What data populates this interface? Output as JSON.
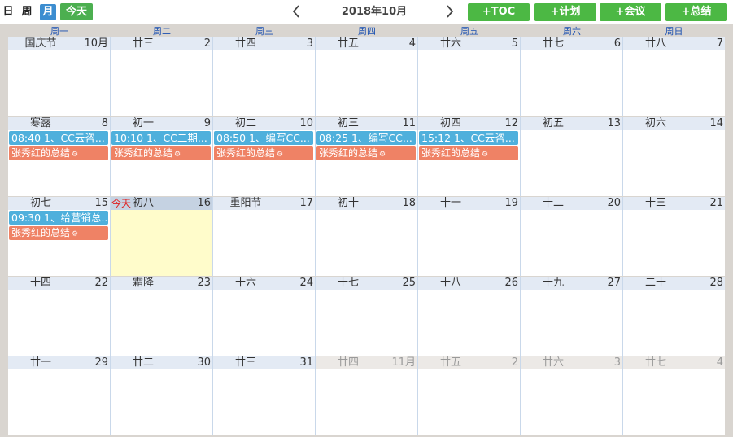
{
  "toolbar": {
    "view_day": "日",
    "view_week": "周",
    "view_month": "月",
    "today": "今天",
    "prev_icon": "chevron-left",
    "next_icon": "chevron-right",
    "title": "2018年10月",
    "btn_toc": "+TOC",
    "btn_plan": "+计划",
    "btn_meeting": "+会议",
    "btn_summary": "+总结"
  },
  "colors": {
    "accent_green": "#4cb844",
    "month_active": "#3c8dd0",
    "plan_event": "#4fb0dc",
    "summary_event": "#ef8265",
    "today_bg": "#fffccb",
    "today_label": "#e02020"
  },
  "weekdays": [
    "周一",
    "周二",
    "周三",
    "周四",
    "周五",
    "周六",
    "周日"
  ],
  "today_label": "今天",
  "weeks": [
    [
      {
        "lunar": "国庆节",
        "num": "10月"
      },
      {
        "lunar": "廿三",
        "num": "2"
      },
      {
        "lunar": "廿四",
        "num": "3"
      },
      {
        "lunar": "廿五",
        "num": "4"
      },
      {
        "lunar": "廿六",
        "num": "5"
      },
      {
        "lunar": "廿七",
        "num": "6"
      },
      {
        "lunar": "廿八",
        "num": "7"
      }
    ],
    [
      {
        "lunar": "寒露",
        "num": "8",
        "plan": "08:40 1、CC云咨...",
        "summary": "张秀红的总结"
      },
      {
        "lunar": "初一",
        "num": "9",
        "plan": "10:10 1、CC二期...",
        "summary": "张秀红的总结"
      },
      {
        "lunar": "初二",
        "num": "10",
        "plan": "08:50 1、编写CC...",
        "summary": "张秀红的总结"
      },
      {
        "lunar": "初三",
        "num": "11",
        "plan": "08:25 1、编写CC...",
        "summary": "张秀红的总结"
      },
      {
        "lunar": "初四",
        "num": "12",
        "plan": "15:12 1、CC云咨...",
        "summary": "张秀红的总结"
      },
      {
        "lunar": "初五",
        "num": "13"
      },
      {
        "lunar": "初六",
        "num": "14"
      }
    ],
    [
      {
        "lunar": "初七",
        "num": "15",
        "plan": "09:30 1、给营销总...",
        "summary": "张秀红的总结"
      },
      {
        "lunar": "初八",
        "num": "16",
        "today": true
      },
      {
        "lunar": "重阳节",
        "num": "17"
      },
      {
        "lunar": "初十",
        "num": "18"
      },
      {
        "lunar": "十一",
        "num": "19"
      },
      {
        "lunar": "十二",
        "num": "20"
      },
      {
        "lunar": "十三",
        "num": "21"
      }
    ],
    [
      {
        "lunar": "十四",
        "num": "22"
      },
      {
        "lunar": "霜降",
        "num": "23"
      },
      {
        "lunar": "十六",
        "num": "24"
      },
      {
        "lunar": "十七",
        "num": "25"
      },
      {
        "lunar": "十八",
        "num": "26"
      },
      {
        "lunar": "十九",
        "num": "27"
      },
      {
        "lunar": "二十",
        "num": "28"
      }
    ],
    [
      {
        "lunar": "廿一",
        "num": "29"
      },
      {
        "lunar": "廿二",
        "num": "30"
      },
      {
        "lunar": "廿三",
        "num": "31"
      },
      {
        "lunar": "廿四",
        "num": "11月",
        "other": true
      },
      {
        "lunar": "廿五",
        "num": "2",
        "other": true
      },
      {
        "lunar": "廿六",
        "num": "3",
        "other": true
      },
      {
        "lunar": "廿七",
        "num": "4",
        "other": true
      }
    ]
  ]
}
